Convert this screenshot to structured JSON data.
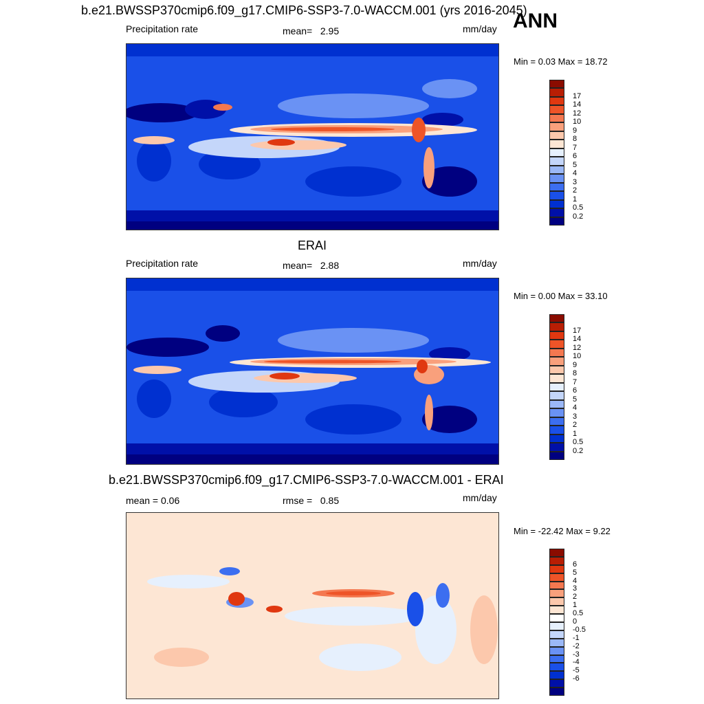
{
  "season": "ANN",
  "panels": [
    {
      "id": "test",
      "title": "b.e21.BWSSP370cmip6.f09_g17.CMIP6-SSP3-7.0-WACCM.001 (yrs 2016-2045)",
      "left_label": "Precipitation rate",
      "stat_label": "mean=",
      "stat_value": "2.95",
      "units": "mm/day",
      "minmax": "Min =   0.03 Max =  18.72"
    },
    {
      "id": "obs",
      "title": "ERAI",
      "left_label": "Precipitation rate",
      "stat_label": "mean=",
      "stat_value": "2.88",
      "units": "mm/day",
      "minmax": "Min =   0.00 Max =  33.10"
    },
    {
      "id": "diff",
      "title": "b.e21.BWSSP370cmip6.f09_g17.CMIP6-SSP3-7.0-WACCM.001 - ERAI",
      "left_label": "mean =   0.06",
      "stat_label": "rmse =",
      "stat_value": "0.85",
      "units": "mm/day",
      "minmax": "Min = -22.42 Max =   9.22"
    }
  ],
  "colorbars": {
    "precip": {
      "colors": [
        "#000080",
        "#0010a8",
        "#0030d0",
        "#1a50e8",
        "#3c6ef0",
        "#6a92f4",
        "#9bb8f7",
        "#c4d6fa",
        "#e6f0fd",
        "#fde6d4",
        "#fcc8ac",
        "#f9a07c",
        "#f47850",
        "#ee5428",
        "#e03810",
        "#b81e04",
        "#8a0c00"
      ],
      "ticks": [
        "0.2",
        "0.5",
        "1",
        "2",
        "3",
        "4",
        "5",
        "6",
        "7",
        "8",
        "9",
        "10",
        "12",
        "14",
        "17"
      ]
    },
    "diff": {
      "colors": [
        "#000080",
        "#0010a8",
        "#0030d0",
        "#1a50e8",
        "#3c6ef0",
        "#6a92f4",
        "#9bb8f7",
        "#c4d6fa",
        "#e6f0fd",
        "#ffffff",
        "#fde6d4",
        "#fcc8ac",
        "#f9a07c",
        "#f47850",
        "#ee5428",
        "#e03810",
        "#b81e04",
        "#8a0c00"
      ],
      "ticks": [
        "-6",
        "-5",
        "-4",
        "-3",
        "-2",
        "-1",
        "-0.5",
        "0",
        "0.5",
        "1",
        "2",
        "3",
        "4",
        "5",
        "6"
      ]
    }
  },
  "chart_data": [
    {
      "type": "heatmap",
      "title": "b.e21.BWSSP370cmip6.f09_g17.CMIP6-SSP3-7.0-WACCM.001 (yrs 2016-2045)",
      "variable": "Precipitation rate",
      "units": "mm/day",
      "mean": 2.95,
      "min": 0.03,
      "max": 18.72,
      "contour_levels": [
        0.2,
        0.5,
        1,
        2,
        3,
        4,
        5,
        6,
        7,
        8,
        9,
        10,
        12,
        14,
        17
      ]
    },
    {
      "type": "heatmap",
      "title": "ERAI",
      "variable": "Precipitation rate",
      "units": "mm/day",
      "mean": 2.88,
      "min": 0.0,
      "max": 33.1,
      "contour_levels": [
        0.2,
        0.5,
        1,
        2,
        3,
        4,
        5,
        6,
        7,
        8,
        9,
        10,
        12,
        14,
        17
      ]
    },
    {
      "type": "heatmap",
      "title": "b.e21.BWSSP370cmip6.f09_g17.CMIP6-SSP3-7.0-WACCM.001 - ERAI",
      "units": "mm/day",
      "mean": 0.06,
      "rmse": 0.85,
      "min": -22.42,
      "max": 9.22,
      "contour_levels": [
        -6,
        -5,
        -4,
        -3,
        -2,
        -1,
        -0.5,
        0,
        0.5,
        1,
        2,
        3,
        4,
        5,
        6
      ]
    }
  ]
}
